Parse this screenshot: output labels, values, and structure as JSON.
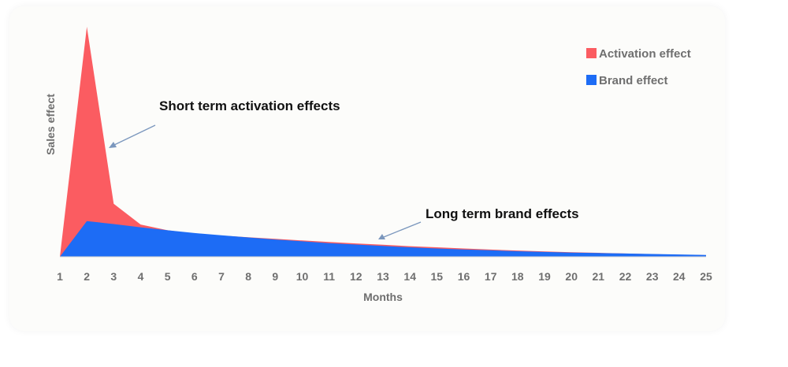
{
  "chart_data": {
    "type": "area",
    "x": [
      1,
      2,
      3,
      4,
      5,
      6,
      7,
      8,
      9,
      10,
      11,
      12,
      13,
      14,
      15,
      16,
      17,
      18,
      19,
      20,
      21,
      22,
      23,
      24,
      25
    ],
    "xlabel": "Months",
    "ylabel": "Sales effect",
    "ylim": [
      0,
      100
    ],
    "stacked": false,
    "series": [
      {
        "name": "Activation effect",
        "color": "#fb5c61",
        "values": [
          0,
          100,
          23,
          14,
          11.5,
          10,
          9.2,
          8.5,
          7.8,
          7.1,
          6.4,
          5.8,
          5.2,
          4.6,
          4.1,
          3.6,
          3.1,
          2.7,
          2.3,
          2,
          1.7,
          1.4,
          1.1,
          0.9,
          0.7
        ]
      },
      {
        "name": "Brand effect",
        "color": "#1d6cf5",
        "values": [
          0,
          15.5,
          14.2,
          12.8,
          11.5,
          10.3,
          9.3,
          8.4,
          7.5,
          6.7,
          5.9,
          5.3,
          4.7,
          4.1,
          3.6,
          3.2,
          2.8,
          2.4,
          2.1,
          1.8,
          1.6,
          1.4,
          1.2,
          1,
          0.8
        ]
      }
    ],
    "annotations": [
      {
        "text": "Short term activation effects",
        "points_to_month": 3
      },
      {
        "text": "Long term brand effects",
        "points_to_month": 13
      }
    ]
  }
}
